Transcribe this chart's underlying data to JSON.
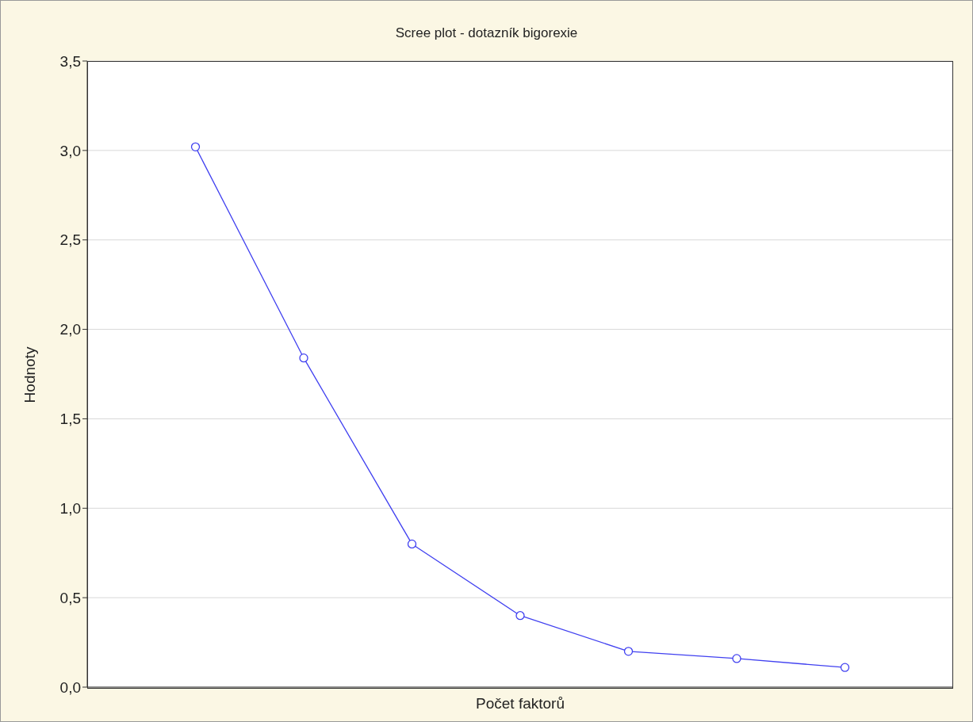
{
  "chart_data": {
    "type": "line",
    "title": "Scree plot - dotazník bigorexie",
    "xlabel": "Počet faktorů",
    "ylabel": "Hodnoty",
    "categories": [
      null,
      null,
      null,
      null,
      null,
      null,
      null
    ],
    "series": [
      {
        "color": "#4040f0",
        "values": [
          3.02,
          1.84,
          0.8,
          0.4,
          0.2,
          0.16,
          0.11
        ]
      }
    ],
    "ylim": [
      0,
      3.5
    ],
    "yticks": [
      {
        "value": 0,
        "label": "0,0"
      },
      {
        "value": 0.5,
        "label": "0,5"
      },
      {
        "value": 1,
        "label": "1,0"
      },
      {
        "value": 1.5,
        "label": "1,5"
      },
      {
        "value": 2,
        "label": "2,0"
      },
      {
        "value": 2.5,
        "label": "2,5"
      },
      {
        "value": 3,
        "label": "3,0"
      },
      {
        "value": 3.5,
        "label": "3,5"
      }
    ],
    "grid": "y",
    "marker": "circle",
    "line_style": "solid",
    "legend": false
  }
}
